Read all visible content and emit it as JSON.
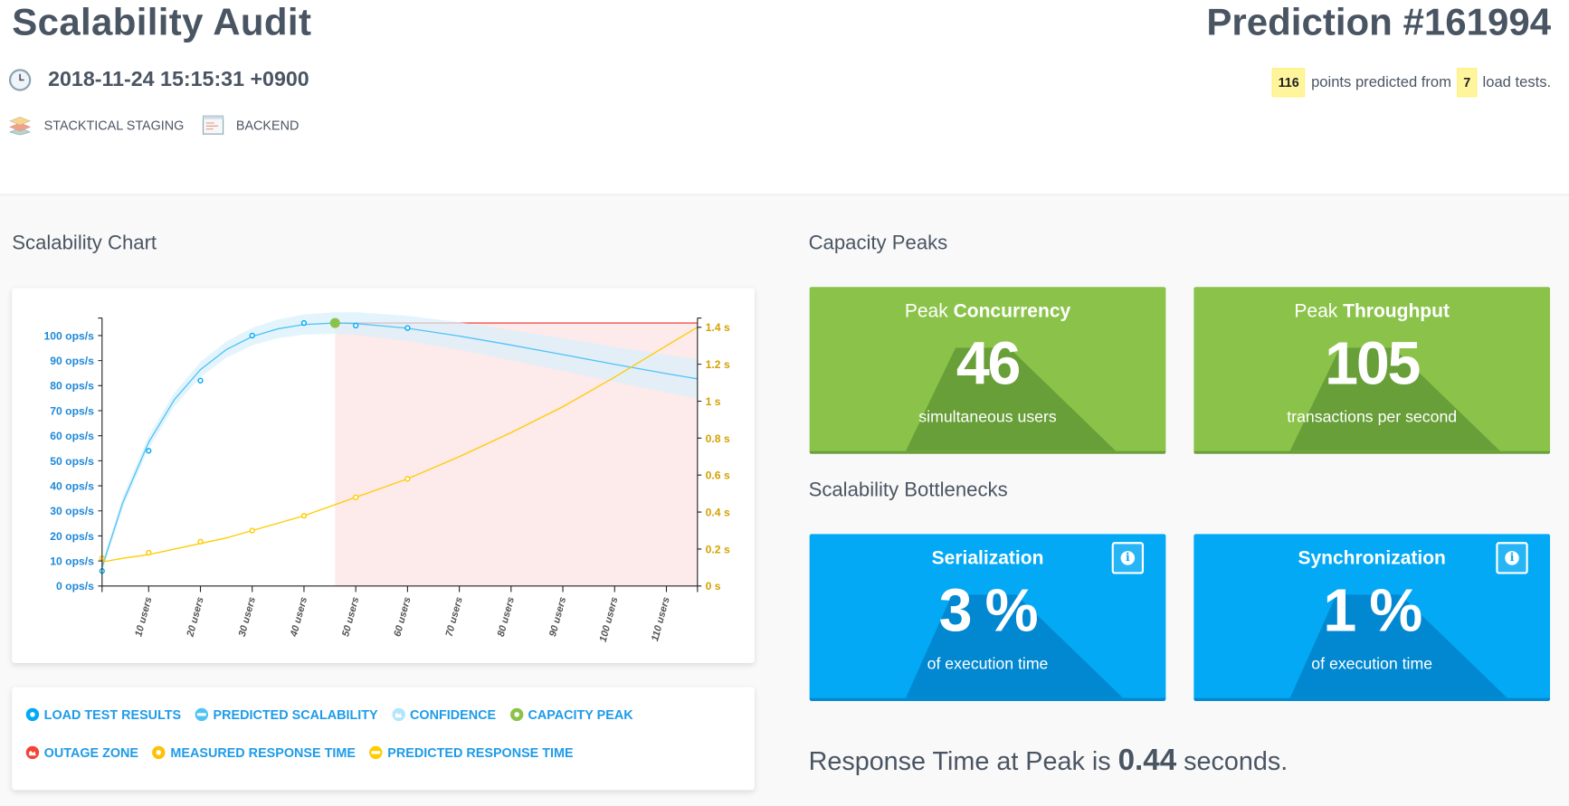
{
  "header": {
    "title": "Scalability Audit",
    "date": "2018-11-24 15:15:31 +0900",
    "environment": "STACKTICAL STAGING",
    "service": "BACKEND",
    "prediction_title": "Prediction #161994",
    "points_count": "116",
    "points_text": "points predicted from",
    "tests_count": "7",
    "tests_text": "load tests."
  },
  "sections": {
    "chart": "Scalability Chart",
    "peaks": "Capacity Peaks",
    "bottlenecks": "Scalability Bottlenecks"
  },
  "peaks": [
    {
      "prefix": "Peak",
      "label": "Concurrency",
      "value": "46",
      "sub": "simultaneous users"
    },
    {
      "prefix": "Peak",
      "label": "Throughput",
      "value": "105",
      "sub": "transactions per second"
    }
  ],
  "bottlenecks": [
    {
      "label": "Serialization",
      "value": "3 %",
      "sub": "of execution time"
    },
    {
      "label": "Synchronization",
      "value": "1 %",
      "sub": "of execution time"
    }
  ],
  "response": {
    "prefix": "Response Time at Peak is",
    "value": "0.44",
    "suffix": "seconds."
  },
  "legend": [
    {
      "label": "LOAD TEST RESULTS",
      "color": "#03a9f4",
      "icon": "dot"
    },
    {
      "label": "PREDICTED SCALABILITY",
      "color": "#4fc3f7",
      "icon": "bar"
    },
    {
      "label": "CONFIDENCE",
      "color": "#b3e5fc",
      "icon": "zone"
    },
    {
      "label": "CAPACITY PEAK",
      "color": "#8bc34a",
      "icon": "dot"
    },
    {
      "label": "OUTAGE ZONE",
      "color": "#f44336",
      "icon": "zone"
    },
    {
      "label": "MEASURED RESPONSE TIME",
      "color": "#ffc107",
      "icon": "dot"
    },
    {
      "label": "PREDICTED RESPONSE TIME",
      "color": "#ffcc00",
      "icon": "bar"
    }
  ],
  "chart_data": {
    "type": "line",
    "title": "Scalability Chart",
    "xlim": [
      1,
      116
    ],
    "ylim_left": [
      0,
      107
    ],
    "ylim_right": [
      0,
      1.45
    ],
    "x_ticks": [
      10,
      20,
      30,
      40,
      50,
      60,
      70,
      80,
      90,
      100,
      110
    ],
    "x_tick_labels": [
      "10 users",
      "20 users",
      "30 users",
      "40 users",
      "50 users",
      "60 users",
      "70 users",
      "80 users",
      "90 users",
      "100 users",
      "110 users"
    ],
    "left_ticks": [
      0,
      10,
      20,
      30,
      40,
      50,
      60,
      70,
      80,
      90,
      100
    ],
    "left_tick_labels": [
      "0 ops/s",
      "10 ops/s",
      "20 ops/s",
      "30 ops/s",
      "40 ops/s",
      "50 ops/s",
      "60 ops/s",
      "70 ops/s",
      "80 ops/s",
      "90 ops/s",
      "100 ops/s"
    ],
    "right_ticks": [
      0,
      0.2,
      0.4,
      0.6,
      0.8,
      1,
      1.2,
      1.4
    ],
    "right_tick_labels": [
      "0 s",
      "0.2 s",
      "0.4 s",
      "0.6 s",
      "0.8 s",
      "1 s",
      "1.2 s",
      "1.4 s"
    ],
    "load_test_results": {
      "users": [
        1,
        10,
        20,
        30,
        40,
        50,
        60
      ],
      "throughput": [
        6,
        54,
        82,
        100,
        105,
        104,
        103
      ]
    },
    "measured_response_time": {
      "users": [
        1,
        10,
        20,
        30,
        40,
        50,
        60
      ],
      "seconds": [
        0.15,
        0.18,
        0.24,
        0.3,
        0.38,
        0.48,
        0.58
      ]
    },
    "predicted": {
      "users": [
        1,
        5,
        10,
        15,
        20,
        25,
        30,
        35,
        40,
        46,
        50,
        60,
        70,
        80,
        90,
        100,
        110,
        116
      ],
      "throughput": [
        7.5,
        33.3,
        57.4,
        74.5,
        86.4,
        94.4,
        99.6,
        102.7,
        104.4,
        105,
        104.8,
        102.9,
        99.8,
        96.2,
        92.4,
        88.5,
        84.8,
        82.7
      ],
      "response_time": [
        0.13,
        0.15,
        0.17,
        0.2,
        0.23,
        0.26,
        0.3,
        0.34,
        0.38,
        0.44,
        0.48,
        0.58,
        0.7,
        0.83,
        0.97,
        1.13,
        1.3,
        1.4
      ],
      "confidence": 2
    },
    "capacity_peak": {
      "users": 46,
      "throughput": 105
    },
    "outage_zone": {
      "from_users": 46,
      "to_users": 116
    },
    "colors": {
      "throughput": "#4fc3f7",
      "points": "#03a9f4",
      "confidence": "#d8effc",
      "peak": "#8bc34a",
      "outage": "#fdeaea",
      "outage_line": "#ef5350",
      "response": "#ffcc00",
      "left_axis": "#1e88d8",
      "right_axis": "#d4a100"
    }
  }
}
